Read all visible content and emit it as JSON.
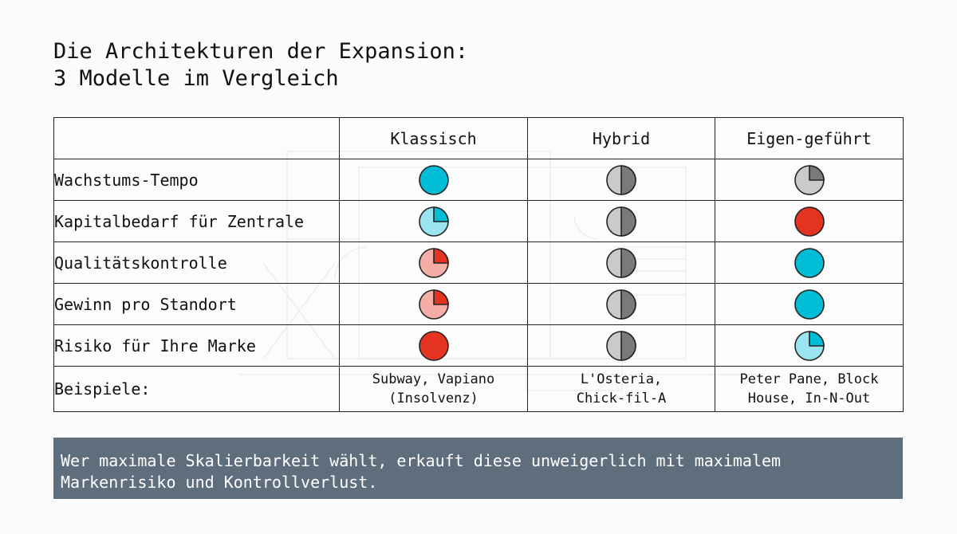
{
  "title": {
    "line1": "Die Architekturen der Expansion:",
    "line2": "3 Modelle im Vergleich"
  },
  "table": {
    "columns": [
      "",
      "Klassisch",
      "Hybrid",
      "Eigen-geführt"
    ],
    "rows": [
      {
        "label": "Wachstums-Tempo",
        "balls": [
          {
            "fill": 1.0,
            "color": "#00bcd4"
          },
          {
            "fill": 0.5,
            "color": "#7a7a7a"
          },
          {
            "fill": 0.25,
            "color": "#7a7a7a"
          }
        ]
      },
      {
        "label": "Kapitalbedarf für Zentrale",
        "balls": [
          {
            "fill": 0.25,
            "color": "#00bcd4"
          },
          {
            "fill": 0.5,
            "color": "#7a7a7a"
          },
          {
            "fill": 1.0,
            "color": "#e53322"
          }
        ]
      },
      {
        "label": "Qualitätskontrolle",
        "balls": [
          {
            "fill": 0.25,
            "color": "#e53322"
          },
          {
            "fill": 0.5,
            "color": "#7a7a7a"
          },
          {
            "fill": 1.0,
            "color": "#00bcd4"
          }
        ]
      },
      {
        "label": "Gewinn pro Standort",
        "balls": [
          {
            "fill": 0.25,
            "color": "#e53322"
          },
          {
            "fill": 0.5,
            "color": "#7a7a7a"
          },
          {
            "fill": 1.0,
            "color": "#00bcd4"
          }
        ]
      },
      {
        "label": "Risiko für Ihre Marke",
        "balls": [
          {
            "fill": 1.0,
            "color": "#e53322"
          },
          {
            "fill": 0.5,
            "color": "#7a7a7a"
          },
          {
            "fill": 0.25,
            "color": "#00bcd4"
          }
        ]
      }
    ],
    "examples": {
      "label": "Beispiele:",
      "cells": [
        [
          "Subway, Vapiano",
          "(Insolvenz)"
        ],
        [
          "L'Osteria,",
          "Chick-fil-A"
        ],
        [
          "Peter Pane, Block",
          "House, In-N-Out"
        ]
      ]
    }
  },
  "note": {
    "line1": "Wer maximale Skalierbarkeit wählt, erkauft diese unweigerlich mit maximalem",
    "line2": "Markenrisiko und Kontrollverlust."
  }
}
